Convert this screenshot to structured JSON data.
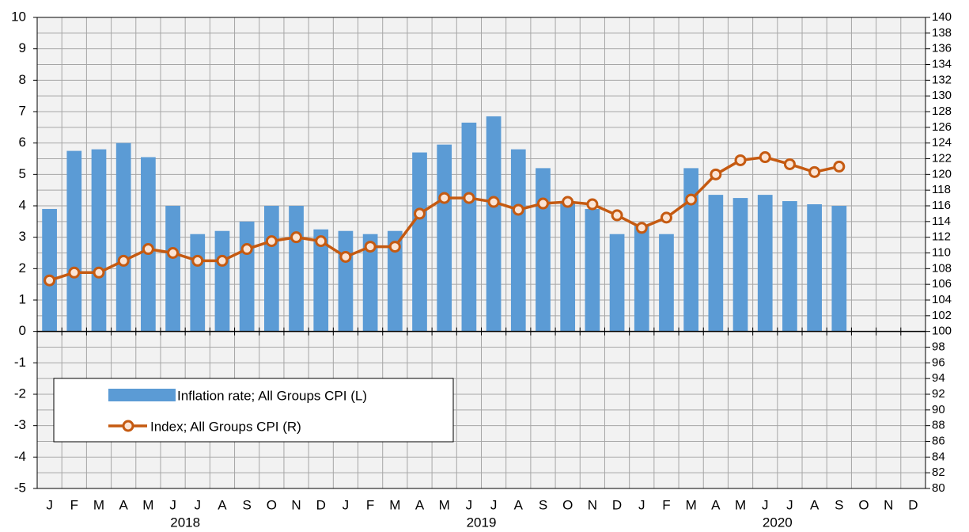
{
  "chart_data": {
    "type": "bar+line",
    "categories": [
      "J",
      "F",
      "M",
      "A",
      "M",
      "J",
      "J",
      "A",
      "S",
      "O",
      "N",
      "D",
      "J",
      "F",
      "M",
      "A",
      "M",
      "J",
      "J",
      "A",
      "S",
      "O",
      "N",
      "D",
      "J",
      "F",
      "M",
      "A",
      "M",
      "J",
      "J",
      "A",
      "S",
      "O",
      "N",
      "D"
    ],
    "years": [
      "2018",
      "2019",
      "2020"
    ],
    "series": [
      {
        "name": "Inflation rate; All Groups CPI (L)",
        "type": "bar",
        "color": "#5b9bd5",
        "values": [
          3.9,
          5.75,
          5.8,
          6.0,
          5.55,
          4.0,
          3.1,
          3.2,
          3.5,
          4.0,
          4.0,
          3.25,
          3.2,
          3.1,
          3.2,
          5.7,
          5.95,
          6.65,
          6.85,
          5.8,
          5.2,
          4.1,
          3.9,
          3.1,
          3.4,
          3.1,
          5.2,
          4.35,
          4.25,
          4.35,
          4.15,
          4.05,
          4.0,
          null,
          null,
          null
        ]
      },
      {
        "name": "Index; All Groups CPI (R)",
        "type": "line",
        "axis": "y2",
        "color": "#c55a11",
        "values": [
          106.5,
          107.5,
          107.5,
          109,
          110.5,
          110,
          109,
          109,
          110.5,
          111.5,
          112,
          111.5,
          109.5,
          110.8,
          110.8,
          115,
          117,
          117,
          116.5,
          115.5,
          116.3,
          116.5,
          116.2,
          114.8,
          113.2,
          114.5,
          116.8,
          120,
          121.8,
          122.2,
          121.3,
          120.3,
          121,
          null,
          null,
          null
        ]
      }
    ],
    "ylim": [
      -5,
      10
    ],
    "yticks": [
      -5,
      -4,
      -3,
      -2,
      -1,
      0,
      1,
      2,
      3,
      4,
      5,
      6,
      7,
      8,
      9,
      10
    ],
    "y2lim": [
      80,
      140
    ],
    "y2ticks": [
      80,
      82,
      84,
      86,
      88,
      90,
      92,
      94,
      96,
      98,
      100,
      102,
      104,
      106,
      108,
      110,
      112,
      114,
      116,
      118,
      120,
      122,
      124,
      126,
      128,
      130,
      132,
      134,
      136,
      138,
      140
    ],
    "grid": true
  }
}
